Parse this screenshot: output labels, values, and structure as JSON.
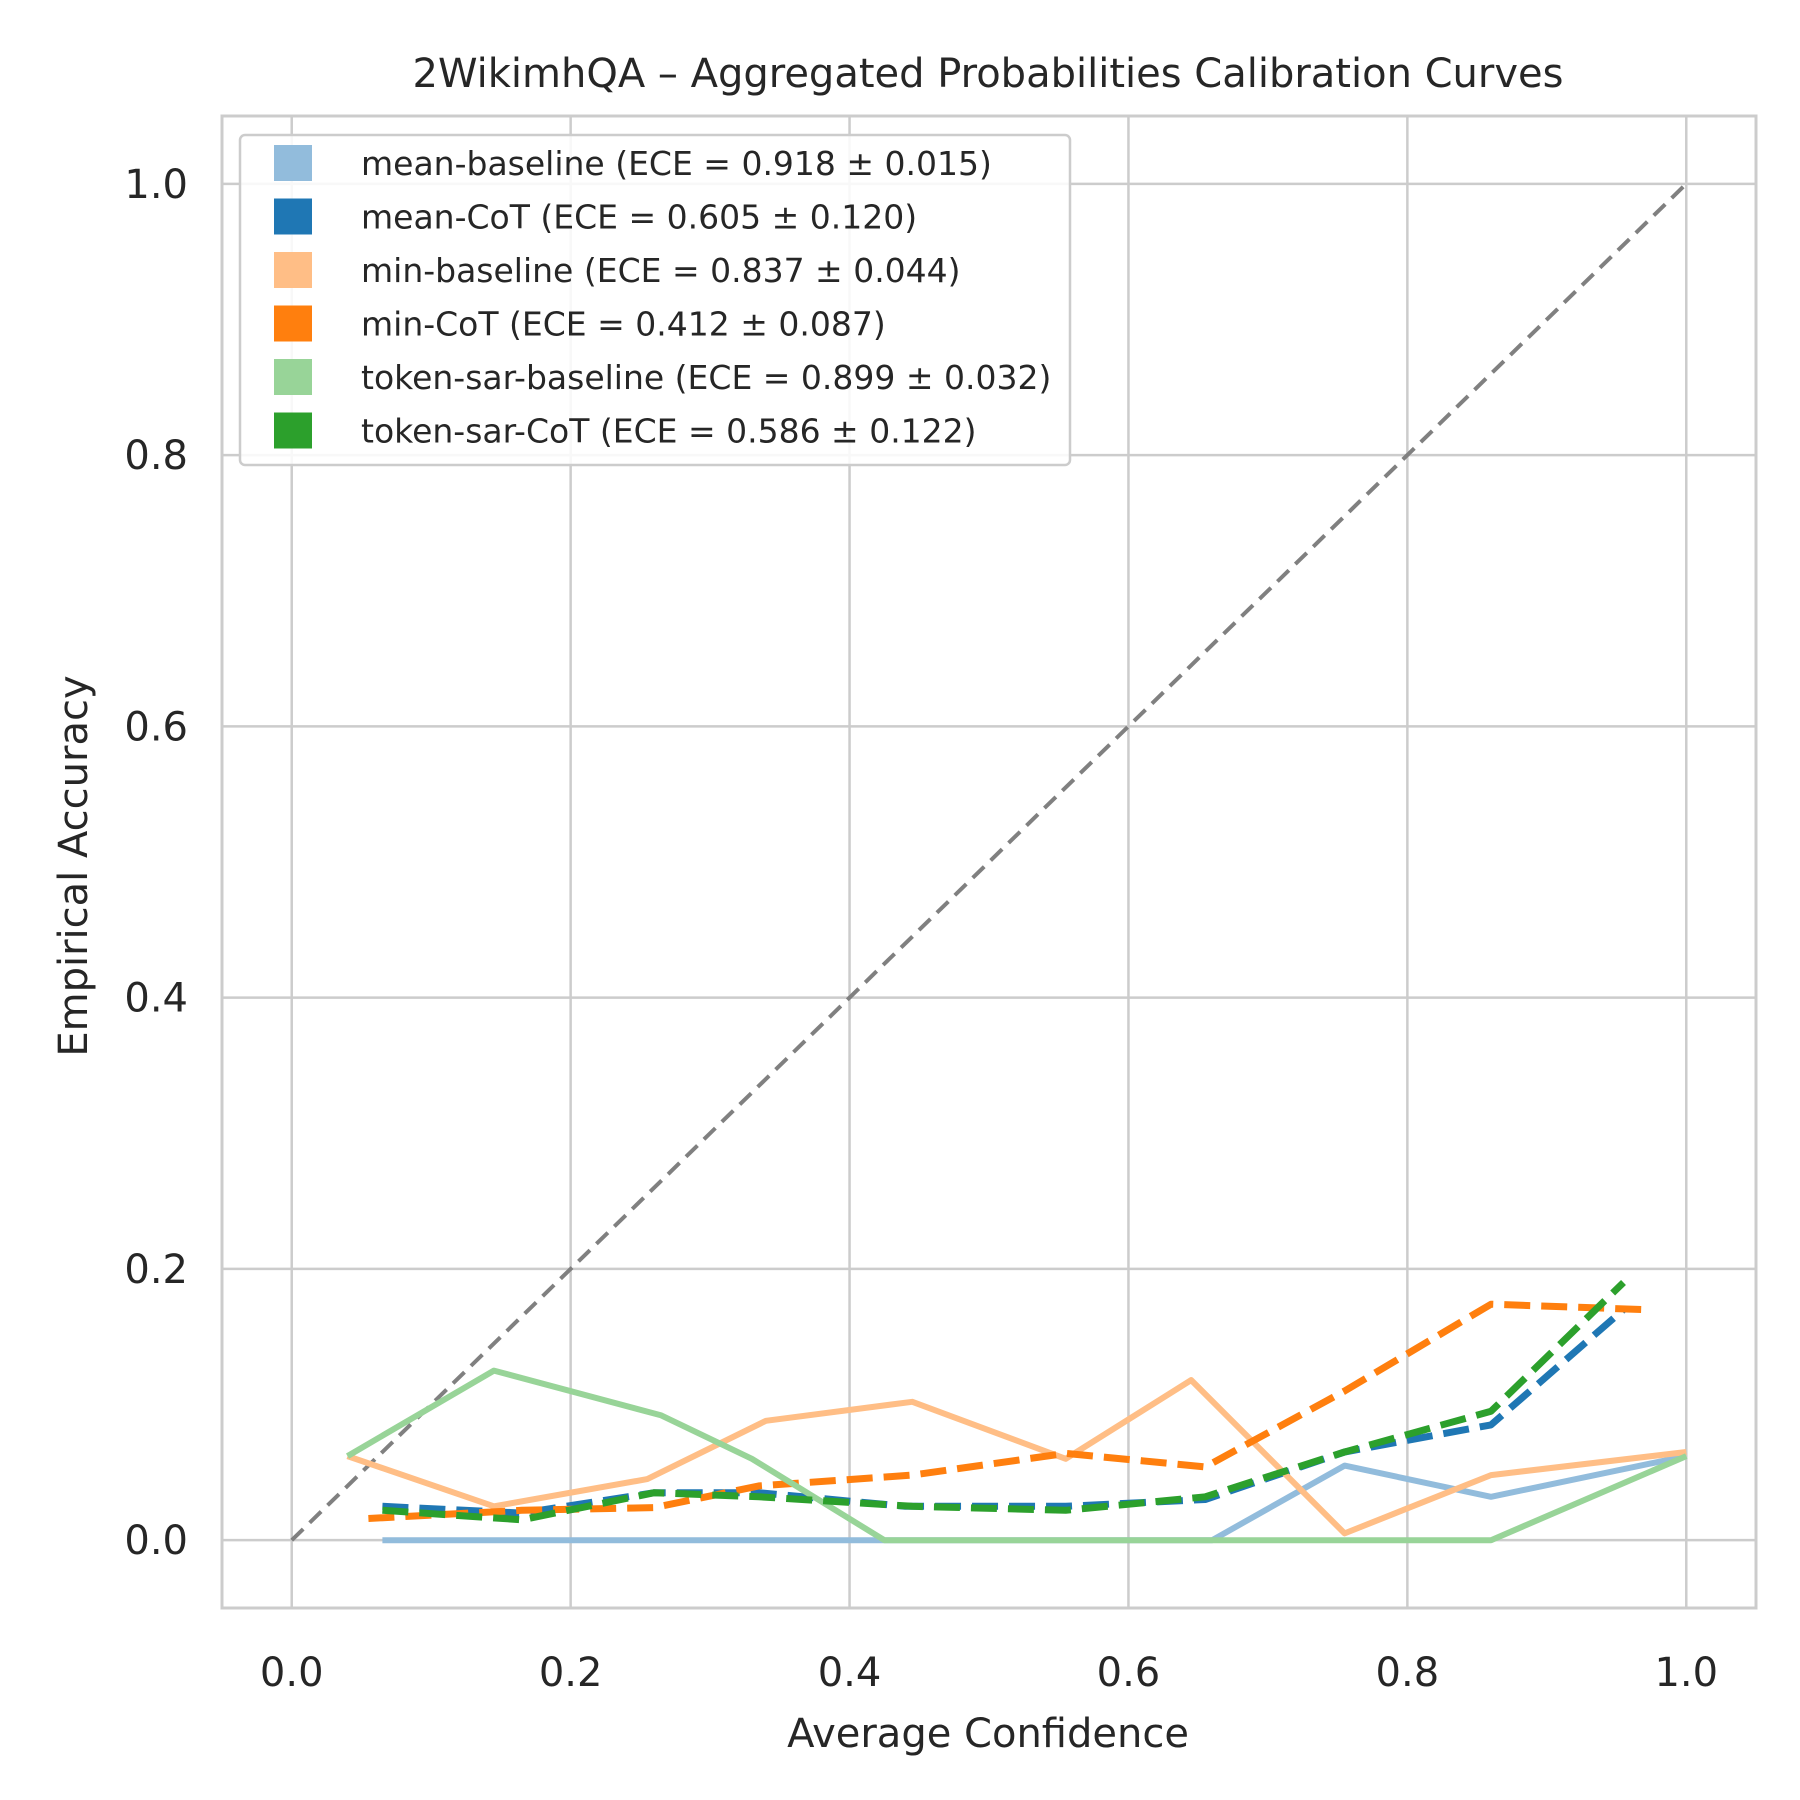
{
  "chart_data": {
    "type": "line",
    "title": "2WikimhQA – Aggregated Probabilities Calibration Curves",
    "xlabel": "Average Confidence",
    "ylabel": "Empirical Accuracy",
    "xlim": [
      -0.05,
      1.05
    ],
    "ylim": [
      -0.05,
      1.05
    ],
    "xticks": [
      "0.0",
      "0.2",
      "0.4",
      "0.6",
      "0.8",
      "1.0"
    ],
    "yticks": [
      "0.0",
      "0.2",
      "0.4",
      "0.6",
      "0.8",
      "1.0"
    ],
    "grid": true,
    "legend_position": "upper-left",
    "reference_line": {
      "x": [
        0,
        1
      ],
      "y": [
        0,
        1
      ],
      "color": "#808080",
      "style": "dashed"
    },
    "series": [
      {
        "name": "mean-baseline (ECE = 0.918 ± 0.015)",
        "color": "#92bcdc",
        "style": "solid",
        "x": [
          0.065,
          0.66,
          0.755,
          0.86,
          1.0
        ],
        "y": [
          0.0,
          0.0,
          0.055,
          0.032,
          0.062
        ]
      },
      {
        "name": "mean-CoT (ECE = 0.605 ± 0.120)",
        "color": "#1f77b4",
        "style": "dashed",
        "x": [
          0.065,
          0.165,
          0.26,
          0.335,
          0.44,
          0.555,
          0.655,
          0.755,
          0.86,
          0.955
        ],
        "y": [
          0.025,
          0.02,
          0.035,
          0.035,
          0.025,
          0.025,
          0.03,
          0.065,
          0.085,
          0.17
        ]
      },
      {
        "name": "min-baseline (ECE = 0.837 ± 0.044)",
        "color": "#ffbe86",
        "style": "solid",
        "x": [
          0.04,
          0.145,
          0.255,
          0.34,
          0.445,
          0.555,
          0.645,
          0.755,
          0.86,
          1.0
        ],
        "y": [
          0.062,
          0.025,
          0.045,
          0.088,
          0.102,
          0.06,
          0.118,
          0.005,
          0.048,
          0.065
        ]
      },
      {
        "name": "min-CoT (ECE = 0.412 ± 0.087)",
        "color": "#ff7f0e",
        "style": "dashed",
        "x": [
          0.055,
          0.165,
          0.26,
          0.335,
          0.445,
          0.555,
          0.655,
          0.755,
          0.86,
          0.97
        ],
        "y": [
          0.016,
          0.022,
          0.024,
          0.04,
          0.048,
          0.064,
          0.054,
          0.11,
          0.174,
          0.17
        ]
      },
      {
        "name": "token-sar-baseline (ECE = 0.899 ± 0.032)",
        "color": "#98d498",
        "style": "solid",
        "x": [
          0.04,
          0.145,
          0.265,
          0.33,
          0.425,
          0.545,
          0.655,
          0.755,
          0.86,
          1.0
        ],
        "y": [
          0.062,
          0.125,
          0.092,
          0.06,
          0.0,
          0.0,
          0.0,
          0.0,
          0.0,
          0.062
        ]
      },
      {
        "name": "token-sar-CoT (ECE = 0.586 ± 0.122)",
        "color": "#2ca02c",
        "style": "dashed",
        "x": [
          0.065,
          0.165,
          0.26,
          0.335,
          0.445,
          0.555,
          0.655,
          0.755,
          0.86,
          0.955
        ],
        "y": [
          0.022,
          0.015,
          0.035,
          0.032,
          0.025,
          0.022,
          0.032,
          0.065,
          0.095,
          0.19
        ]
      }
    ]
  }
}
